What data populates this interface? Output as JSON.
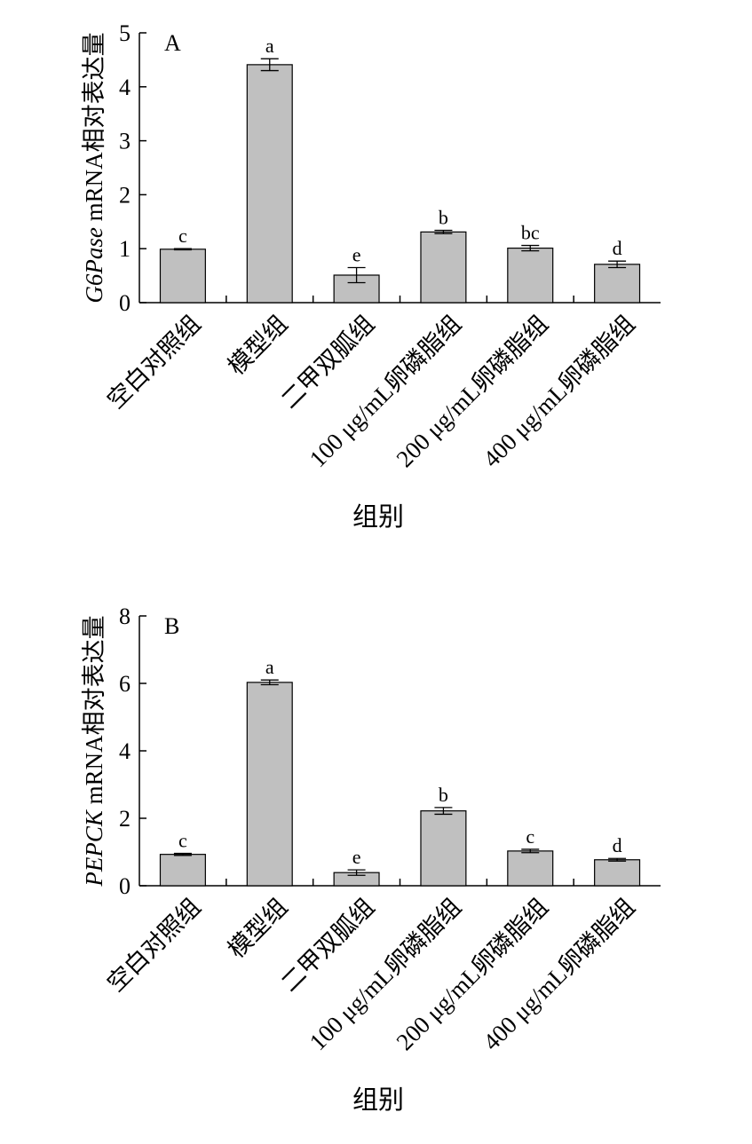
{
  "chart_data": [
    {
      "type": "bar",
      "panel_label": "A",
      "ylabel_italic": "G6Pase",
      "ylabel_rest": " mRNA相对表达量",
      "xlabel": "组别",
      "ylim": [
        0,
        5
      ],
      "yticks": [
        "0",
        "1",
        "2",
        "3",
        "4",
        "5"
      ],
      "categories": [
        "空白对照组",
        "模型组",
        "二甲双胍组",
        "100 μg/mL卵磷脂组",
        "200 μg/mL卵磷脂组",
        "400 μg/mL卵磷脂组"
      ],
      "values": [
        0.99,
        4.41,
        0.51,
        1.31,
        1.01,
        0.71
      ],
      "errors": [
        0.01,
        0.11,
        0.14,
        0.03,
        0.05,
        0.06
      ],
      "letters": [
        "c",
        "a",
        "e",
        "b",
        "bc",
        "d"
      ],
      "bar_color": "#c0c0c0"
    },
    {
      "type": "bar",
      "panel_label": "B",
      "ylabel_italic": "PEPCK",
      "ylabel_rest": " mRNA相对表达量",
      "xlabel": "组别",
      "ylim": [
        0,
        8
      ],
      "yticks": [
        "0",
        "2",
        "4",
        "6",
        "8"
      ],
      "categories": [
        "空白对照组",
        "模型组",
        "二甲双胍组",
        "100 μg/mL卵磷脂组",
        "200 μg/mL卵磷脂组",
        "400 μg/mL卵磷脂组"
      ],
      "values": [
        0.93,
        6.03,
        0.39,
        2.22,
        1.03,
        0.77
      ],
      "errors": [
        0.03,
        0.07,
        0.08,
        0.1,
        0.05,
        0.04
      ],
      "letters": [
        "c",
        "a",
        "e",
        "b",
        "c",
        "d"
      ],
      "bar_color": "#c0c0c0"
    }
  ]
}
